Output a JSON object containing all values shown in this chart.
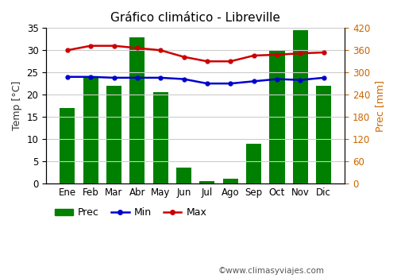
{
  "title": "Gráfico climático - Libreville",
  "months": [
    "Ene",
    "Feb",
    "Mar",
    "Abr",
    "May",
    "Jun",
    "Jul",
    "Ago",
    "Sep",
    "Oct",
    "Nov",
    "Dic"
  ],
  "prec_mm": [
    204,
    287,
    264,
    396,
    246,
    42,
    6,
    12,
    107,
    360,
    414,
    264
  ],
  "temp_min": [
    24.0,
    24.0,
    23.8,
    23.8,
    23.8,
    23.5,
    22.5,
    22.5,
    23.0,
    23.5,
    23.3,
    23.8
  ],
  "temp_max": [
    30.0,
    31.0,
    31.0,
    30.5,
    30.0,
    28.5,
    27.5,
    27.5,
    28.8,
    29.0,
    29.3,
    29.5
  ],
  "bar_color": "#008000",
  "line_min_color": "#0000cc",
  "line_max_color": "#cc0000",
  "ylabel_left": "Temp [°C]",
  "ylabel_right": "Prec [mm]",
  "temp_ylim": [
    0,
    35
  ],
  "prec_ylim": [
    0,
    420
  ],
  "temp_yticks": [
    0,
    5,
    10,
    15,
    20,
    25,
    30,
    35
  ],
  "prec_yticks": [
    0,
    60,
    120,
    180,
    240,
    300,
    360,
    420
  ],
  "watermark": "©www.climasyviajes.com",
  "bg_color": "#ffffff",
  "grid_color": "#cccccc"
}
